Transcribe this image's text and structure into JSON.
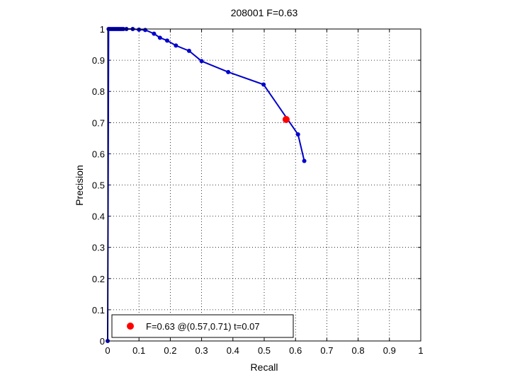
{
  "chart_data": {
    "type": "line",
    "title": "208001 F=0.63",
    "xlabel": "Recall",
    "ylabel": "Precision",
    "xlim": [
      0,
      1
    ],
    "ylim": [
      0,
      1
    ],
    "xticks": [
      "0",
      "0.1",
      "0.2",
      "0.3",
      "0.4",
      "0.5",
      "0.6",
      "0.7",
      "0.8",
      "0.9",
      "1"
    ],
    "yticks": [
      "0",
      "0.1",
      "0.2",
      "0.3",
      "0.4",
      "0.5",
      "0.6",
      "0.7",
      "0.8",
      "0.9",
      "1"
    ],
    "grid": true,
    "legend_position": "bottom-left",
    "series": [
      {
        "color": "#0000cc",
        "x": [
          0,
          0.003,
          0.005,
          0.01,
          0.015,
          0.02,
          0.025,
          0.03,
          0.035,
          0.04,
          0.045,
          0.05,
          0.06,
          0.08,
          0.1,
          0.12,
          0.148,
          0.167,
          0.19,
          0.218,
          0.26,
          0.3,
          0.385,
          0.498,
          0.608,
          0.628
        ],
        "y": [
          0,
          1,
          1,
          1,
          1,
          1,
          1,
          1,
          1,
          1,
          1,
          1,
          1,
          1,
          0.998,
          0.997,
          0.985,
          0.972,
          0.963,
          0.947,
          0.93,
          0.897,
          0.862,
          0.822,
          0.662,
          0.577
        ]
      }
    ],
    "highlight": {
      "x": 0.57,
      "y": 0.71,
      "color": "#ff0000",
      "label": "F=0.63 @(0.57,0.71) t=0.07"
    }
  }
}
